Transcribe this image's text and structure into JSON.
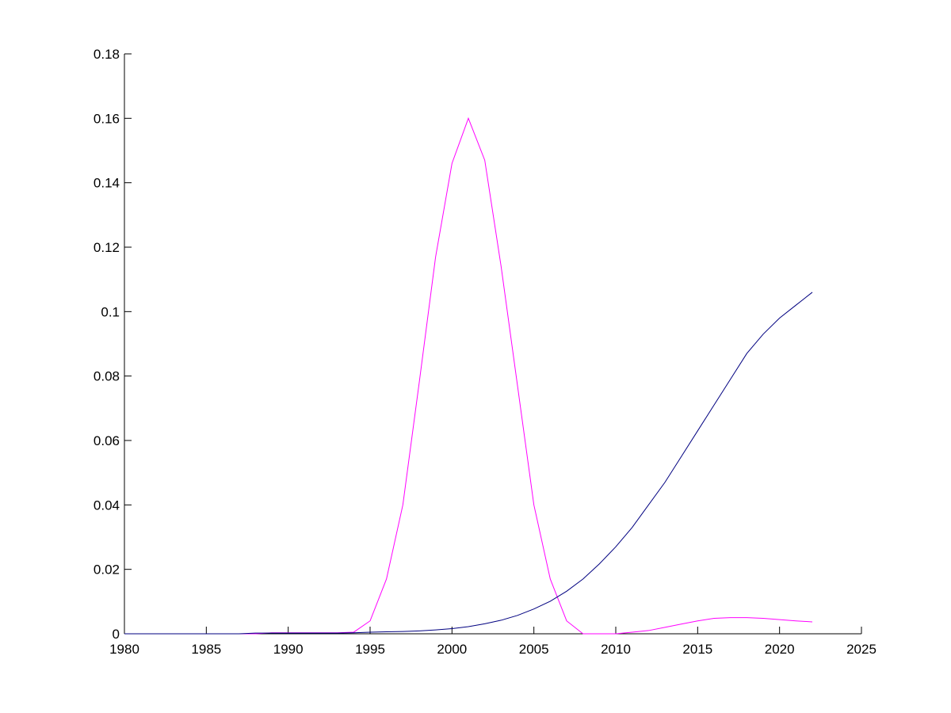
{
  "chart_data": {
    "type": "line",
    "x": [
      1980,
      1981,
      1982,
      1983,
      1984,
      1985,
      1986,
      1987,
      1988,
      1989,
      1990,
      1991,
      1992,
      1993,
      1994,
      1995,
      1996,
      1997,
      1998,
      1999,
      2000,
      2001,
      2002,
      2003,
      2004,
      2005,
      2006,
      2007,
      2008,
      2009,
      2010,
      2011,
      2012,
      2013,
      2014,
      2015,
      2016,
      2017,
      2018,
      2019,
      2020,
      2021,
      2022
    ],
    "series": [
      {
        "color": "#ff00ff",
        "values": [
          0,
          0,
          0,
          0,
          0,
          0,
          0,
          0,
          0,
          0.0003,
          0.0003,
          0.0003,
          0.0003,
          0.0003,
          0.0005,
          0.004,
          0.017,
          0.04,
          0.078,
          0.117,
          0.146,
          0.16,
          0.147,
          0.114,
          0.077,
          0.04,
          0.017,
          0.004,
          0,
          0,
          0,
          0.0005,
          0.001,
          0.002,
          0.003,
          0.004,
          0.0048,
          0.005,
          0.005,
          0.0048,
          0.0044,
          0.004,
          0.0037
        ]
      },
      {
        "color": "#000080",
        "values": [
          0,
          0,
          0,
          0,
          0,
          0,
          0,
          0,
          0.0002,
          0.0002,
          0.0002,
          0.0002,
          0.0002,
          0.0002,
          0.0003,
          0.0005,
          0.0006,
          0.0007,
          0.0009,
          0.0012,
          0.0016,
          0.0022,
          0.0031,
          0.0042,
          0.0057,
          0.0077,
          0.0101,
          0.0132,
          0.017,
          0.0217,
          0.027,
          0.033,
          0.04,
          0.047,
          0.055,
          0.063,
          0.071,
          0.079,
          0.087,
          0.093,
          0.098,
          0.102,
          0.106
        ]
      }
    ],
    "xlim": [
      1980,
      2025
    ],
    "xticks": [
      1980,
      1985,
      1990,
      1995,
      2000,
      2005,
      2010,
      2015,
      2020,
      2025
    ],
    "ylim": [
      0,
      0.18
    ],
    "yticks": [
      0,
      0.02,
      0.04,
      0.06,
      0.08,
      0.1,
      0.12,
      0.14,
      0.16,
      0.18
    ]
  }
}
